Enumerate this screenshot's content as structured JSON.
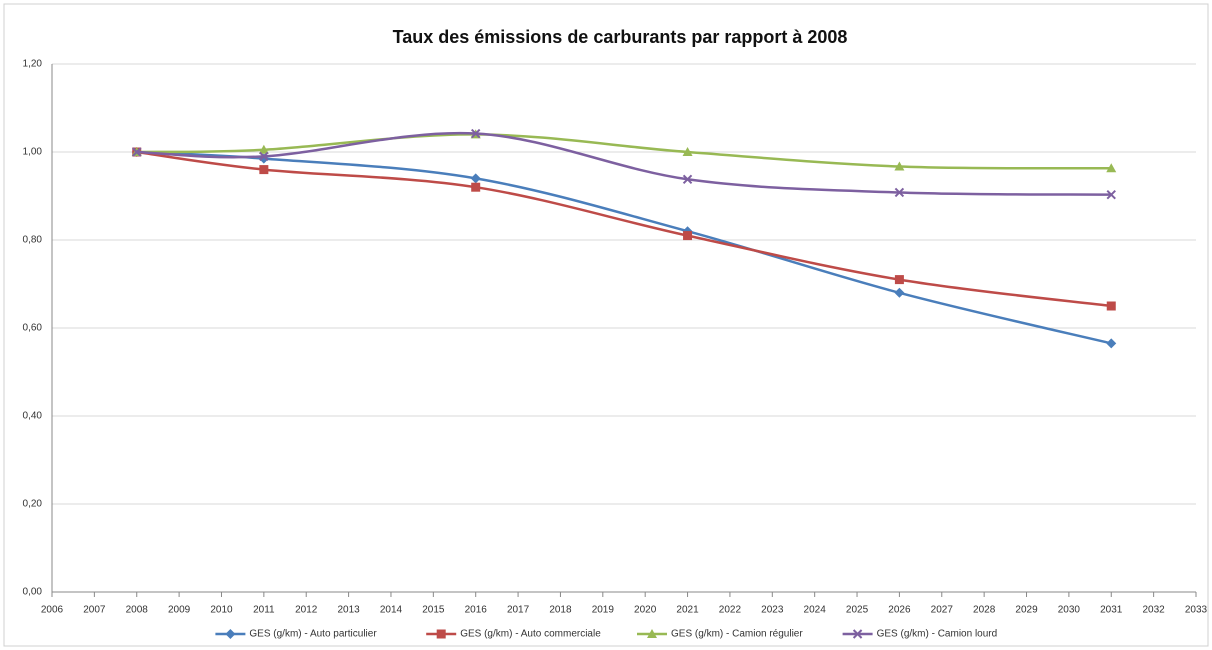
{
  "chart_data": {
    "type": "line",
    "title": "Taux des émissions de carburants par rapport à 2008",
    "x": [
      2008,
      2011,
      2016,
      2021,
      2026,
      2031
    ],
    "series": [
      {
        "name": "GES (g/km) - Auto particulier",
        "color": "#4a7ebb",
        "marker": "diamond",
        "values": [
          1.0,
          0.985,
          0.94,
          0.82,
          0.68,
          0.565
        ]
      },
      {
        "name": "GES (g/km) - Auto commerciale",
        "color": "#be4b48",
        "marker": "square",
        "values": [
          1.0,
          0.96,
          0.92,
          0.81,
          0.71,
          0.65
        ]
      },
      {
        "name": "GES (g/km) - Camion régulier",
        "color": "#98b954",
        "marker": "triangle",
        "values": [
          1.0,
          1.005,
          1.04,
          1.0,
          0.967,
          0.963
        ]
      },
      {
        "name": "GES (g/km) - Camion lourd",
        "color": "#7d60a0",
        "marker": "x",
        "values": [
          1.0,
          0.99,
          1.042,
          0.938,
          0.908,
          0.903
        ]
      }
    ],
    "xlim": [
      2006,
      2033
    ],
    "xticks": [
      2006,
      2007,
      2008,
      2009,
      2010,
      2011,
      2012,
      2013,
      2014,
      2015,
      2016,
      2017,
      2018,
      2019,
      2020,
      2021,
      2022,
      2023,
      2024,
      2025,
      2026,
      2027,
      2028,
      2029,
      2030,
      2031,
      2032,
      2033
    ],
    "ylim": [
      0,
      1.2
    ],
    "yticks": [
      {
        "value": 0,
        "label": "0,00"
      },
      {
        "value": 0.2,
        "label": "0,20"
      },
      {
        "value": 0.4,
        "label": "0,40"
      },
      {
        "value": 0.6,
        "label": "0,60"
      },
      {
        "value": 0.8,
        "label": "0,80"
      },
      {
        "value": 1.0,
        "label": "1,00"
      },
      {
        "value": 1.2,
        "label": "1,20"
      }
    ],
    "grid": true,
    "smooth": true,
    "legend": "bottom"
  }
}
